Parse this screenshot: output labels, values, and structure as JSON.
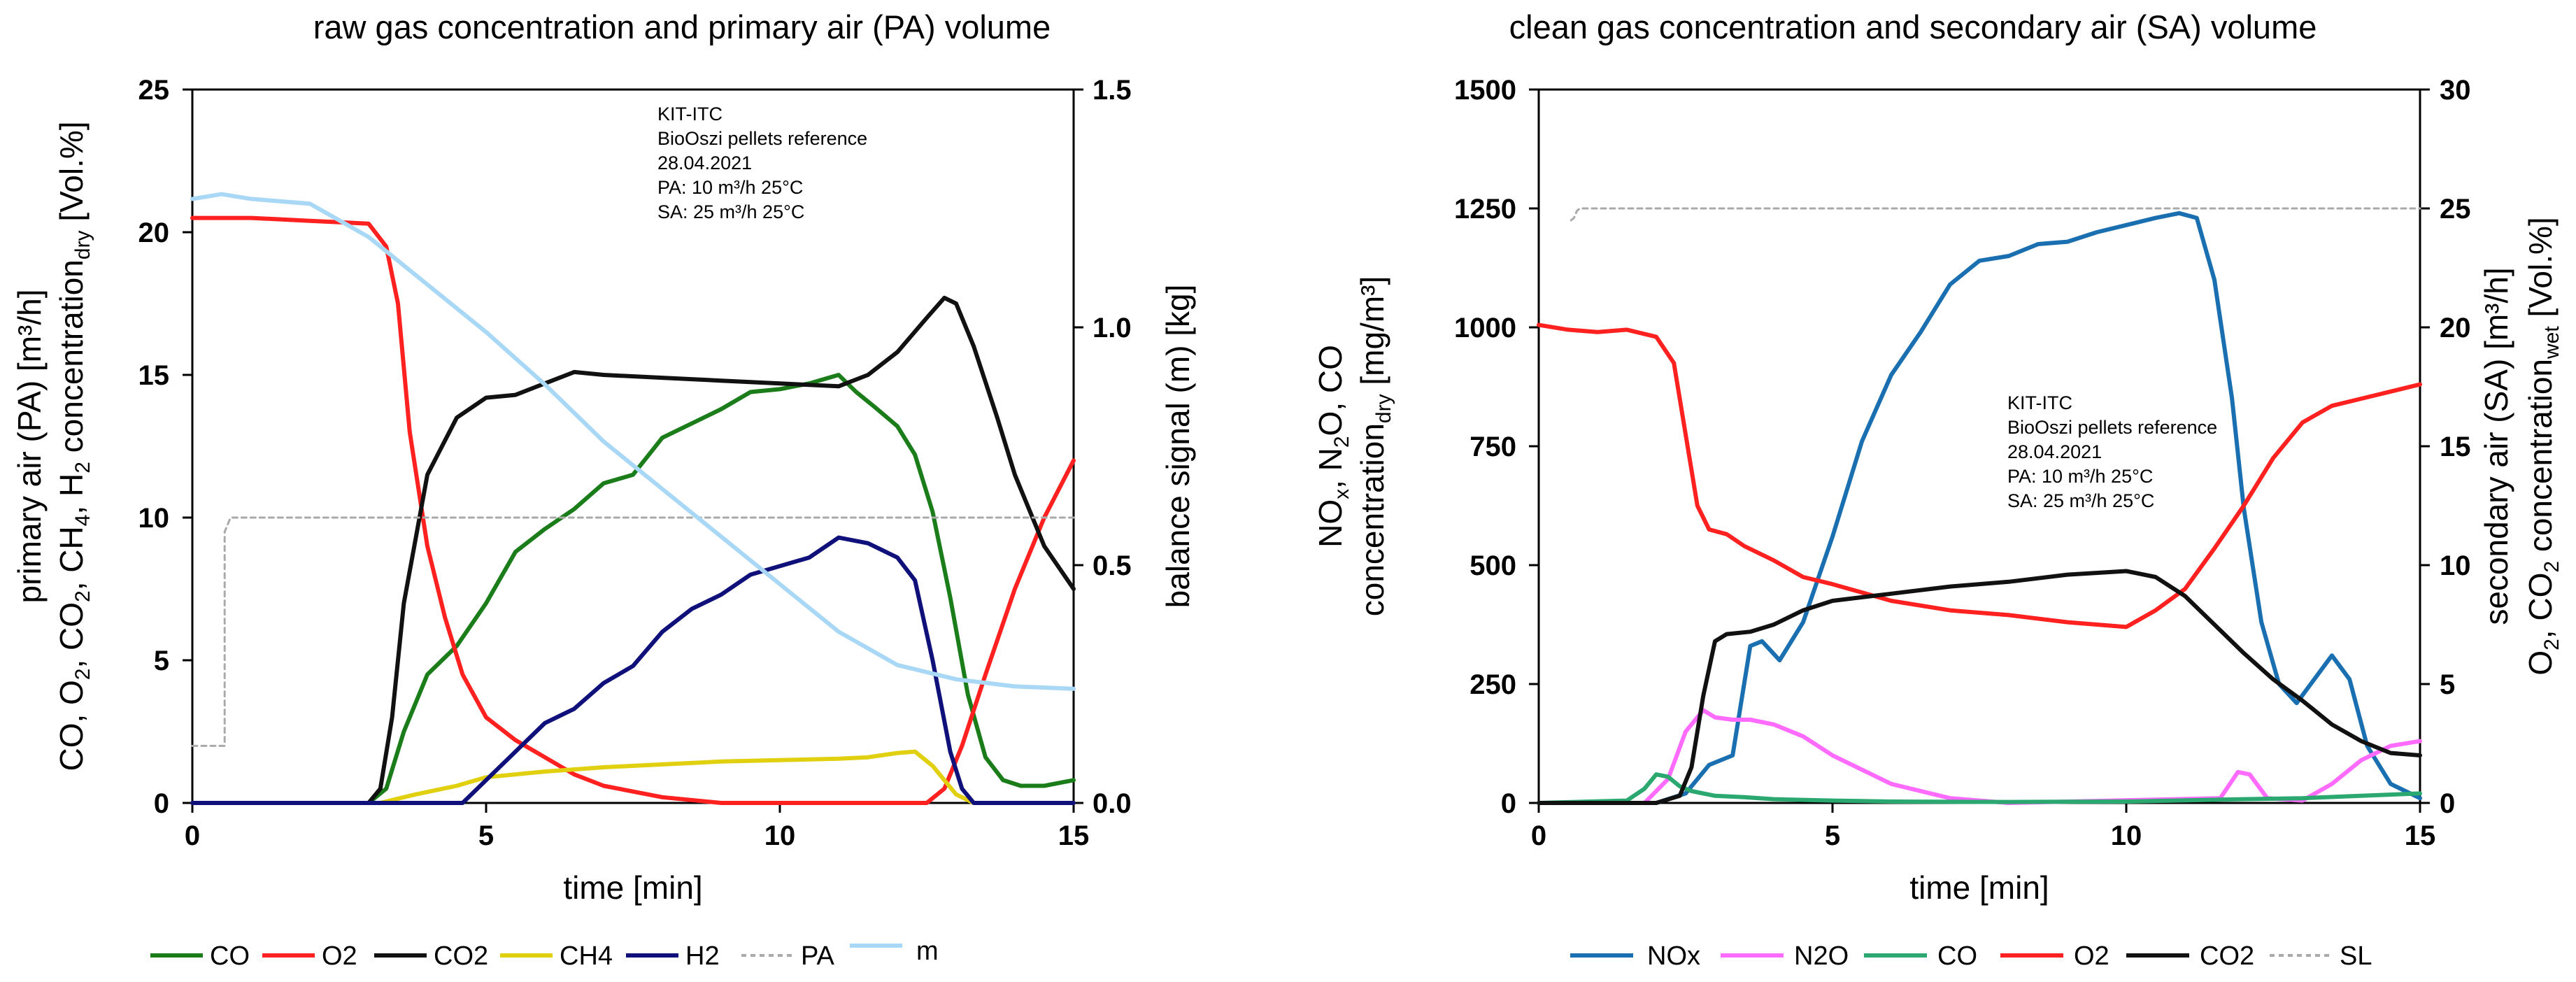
{
  "chart_data": [
    {
      "type": "line",
      "title": "raw gas concentration and primary air (PA) volume",
      "xlabel": "time [min]",
      "ylabel": {
        "text": "primary air (PA) [m³/h]",
        "line2": "CO, O",
        "sub1": "2",
        "t1": ", CO",
        "sub2": "2",
        "t2": ", CH",
        "sub3": "4",
        "t3": ", H",
        "sub4": "2",
        "t4": " concentration",
        "sub5": "dry",
        "t5": " [Vol.%]"
      },
      "ylabel_right": "balance signal (m) [kg]",
      "xlim": [
        0,
        15
      ],
      "ylim": [
        0,
        25
      ],
      "ylim_right": [
        0,
        1.5
      ],
      "xticks": [
        "0",
        "5",
        "10",
        "15"
      ],
      "yticks": [
        "0",
        "5",
        "10",
        "15",
        "20",
        "25"
      ],
      "yticks_right": [
        "0.0",
        "0.5",
        "1.0",
        "1.5"
      ],
      "annotation": [
        "KIT-ITC",
        "BioOszi pellets reference",
        "28.04.2021",
        "PA: 10 m³/h 25°C",
        "SA: 25 m³/h 25°C"
      ],
      "series": [
        {
          "name": "CO",
          "color": "#1a7d1a",
          "axis": "left",
          "dash": false,
          "x": [
            0,
            3.0,
            3.3,
            3.6,
            4.0,
            4.5,
            5.0,
            5.5,
            6.0,
            6.5,
            7.0,
            7.5,
            8.0,
            8.5,
            9.0,
            9.5,
            10.0,
            10.5,
            11.0,
            11.3,
            11.6,
            12.0,
            12.3,
            12.6,
            12.9,
            13.2,
            13.5,
            13.8,
            14.1,
            14.5,
            15.0
          ],
          "y": [
            0,
            0,
            0.5,
            2.5,
            4.5,
            5.5,
            7.0,
            8.8,
            9.6,
            10.3,
            11.2,
            11.5,
            12.8,
            13.3,
            13.8,
            14.4,
            14.5,
            14.7,
            15.0,
            14.4,
            13.9,
            13.2,
            12.2,
            10.2,
            7.2,
            3.8,
            1.6,
            0.8,
            0.6,
            0.6,
            0.8
          ]
        },
        {
          "name": "O2",
          "color": "#ff2020",
          "axis": "left",
          "dash": false,
          "x": [
            0,
            1.0,
            2.0,
            3.0,
            3.3,
            3.5,
            3.7,
            4.0,
            4.3,
            4.6,
            5.0,
            5.5,
            6.0,
            6.5,
            7.0,
            8.0,
            9.0,
            12.5,
            12.8,
            13.1,
            13.5,
            14.0,
            14.5,
            15.0
          ],
          "y": [
            20.5,
            20.5,
            20.4,
            20.3,
            19.5,
            17.5,
            13.0,
            9.0,
            6.5,
            4.5,
            3.0,
            2.2,
            1.6,
            1.0,
            0.6,
            0.2,
            0,
            0,
            0.5,
            2.0,
            4.5,
            7.5,
            10.0,
            12.0
          ]
        },
        {
          "name": "CO2",
          "color": "#111111",
          "axis": "left",
          "dash": false,
          "x": [
            0,
            3.0,
            3.2,
            3.4,
            3.6,
            4.0,
            4.5,
            5.0,
            5.5,
            6.0,
            6.5,
            7.0,
            8.0,
            9.0,
            10.0,
            11.0,
            11.5,
            12.0,
            12.5,
            12.8,
            13.0,
            13.3,
            13.7,
            14.0,
            14.5,
            15.0
          ],
          "y": [
            0,
            0,
            0.5,
            3.0,
            7.0,
            11.5,
            13.5,
            14.2,
            14.3,
            14.7,
            15.1,
            15.0,
            14.9,
            14.8,
            14.7,
            14.6,
            15.0,
            15.8,
            17.0,
            17.7,
            17.5,
            16.0,
            13.5,
            11.5,
            9.0,
            7.5
          ]
        },
        {
          "name": "CH4",
          "color": "#e0d010",
          "axis": "left",
          "dash": false,
          "x": [
            0,
            3.2,
            3.8,
            4.5,
            5.0,
            6.0,
            7.0,
            8.0,
            9.0,
            10.0,
            11.0,
            11.5,
            12.0,
            12.3,
            12.6,
            13.0,
            13.3,
            15.0
          ],
          "y": [
            0,
            0,
            0.3,
            0.6,
            0.9,
            1.1,
            1.25,
            1.35,
            1.45,
            1.5,
            1.55,
            1.6,
            1.75,
            1.8,
            1.3,
            0.3,
            0,
            0
          ]
        },
        {
          "name": "H2",
          "color": "#10107a",
          "axis": "left",
          "dash": false,
          "x": [
            0,
            4.6,
            5.0,
            5.5,
            6.0,
            6.5,
            7.0,
            7.5,
            8.0,
            8.5,
            9.0,
            9.5,
            10.0,
            10.5,
            11.0,
            11.5,
            12.0,
            12.3,
            12.6,
            12.9,
            13.1,
            13.3,
            15.0
          ],
          "y": [
            0,
            0,
            0.8,
            1.8,
            2.8,
            3.3,
            4.2,
            4.8,
            6.0,
            6.8,
            7.3,
            8.0,
            8.3,
            8.6,
            9.3,
            9.1,
            8.6,
            7.8,
            5.0,
            1.8,
            0.5,
            0,
            0
          ]
        },
        {
          "name": "PA",
          "color": "#aaaaaa",
          "axis": "left",
          "dash": true,
          "x": [
            0,
            0.55,
            0.55,
            0.65,
            15.0
          ],
          "y": [
            2.0,
            2.0,
            9.5,
            10.0,
            10.0
          ]
        },
        {
          "name": "m",
          "color": "#a8d8f5",
          "axis": "right",
          "dash": false,
          "x": [
            0,
            0.5,
            1.0,
            2.0,
            3.0,
            4.0,
            5.0,
            6.0,
            7.0,
            8.0,
            9.0,
            10.0,
            11.0,
            12.0,
            13.0,
            14.0,
            15.0
          ],
          "y": [
            1.27,
            1.28,
            1.27,
            1.26,
            1.19,
            1.09,
            0.99,
            0.88,
            0.76,
            0.66,
            0.56,
            0.46,
            0.36,
            0.29,
            0.26,
            0.245,
            0.24
          ]
        }
      ],
      "legend": [
        "CO",
        "O2",
        "CO2",
        "CH4",
        "H2",
        "PA",
        "m"
      ]
    },
    {
      "type": "line",
      "title": "clean gas concentration and secondary air (SA) volume",
      "xlabel": "time [min]",
      "ylabel": {
        "a": "NO",
        "sub1": "x",
        "b": ", N",
        "sub2": "2",
        "c": "O, CO",
        "line2": "concentration",
        "sub3": "dry",
        "d": " [mg/m³]"
      },
      "ylabel_right": {
        "text": "secondary air (SA) [m³/h]",
        "a": "O",
        "sub1": "2",
        "b": ", CO",
        "sub2": "2",
        "c": " concentration",
        "sub3": "wet",
        "d": " [Vol.%]"
      },
      "xlim": [
        0,
        15
      ],
      "ylim": [
        0,
        1500
      ],
      "ylim_right": [
        0,
        30
      ],
      "xticks": [
        "0",
        "5",
        "10",
        "15"
      ],
      "yticks": [
        "0",
        "250",
        "500",
        "750",
        "1000",
        "1250",
        "1500"
      ],
      "yticks_right": [
        "0",
        "5",
        "10",
        "15",
        "20",
        "25",
        "30"
      ],
      "annotation": [
        "KIT-ITC",
        "BioOszi pellets reference",
        "28.04.2021",
        "PA: 10 m³/h 25°C",
        "SA: 25 m³/h 25°C"
      ],
      "series": [
        {
          "name": "NOx",
          "color": "#1a6fb0",
          "axis": "left",
          "dash": false,
          "x": [
            0,
            2.0,
            2.5,
            2.9,
            3.3,
            3.6,
            3.8,
            4.1,
            4.5,
            5.0,
            5.5,
            6.0,
            6.5,
            7.0,
            7.5,
            8.0,
            8.5,
            9.0,
            9.5,
            10.0,
            10.5,
            10.9,
            11.2,
            11.5,
            11.8,
            12.0,
            12.3,
            12.6,
            12.9,
            13.2,
            13.5,
            13.8,
            14.1,
            14.5,
            15.0
          ],
          "y": [
            0,
            0,
            20,
            80,
            100,
            330,
            340,
            300,
            380,
            560,
            760,
            900,
            990,
            1090,
            1140,
            1150,
            1175,
            1180,
            1200,
            1215,
            1230,
            1240,
            1230,
            1100,
            850,
            620,
            380,
            250,
            210,
            260,
            310,
            260,
            120,
            40,
            10
          ]
        },
        {
          "name": "N2O",
          "color": "#ff6aff",
          "axis": "left",
          "dash": false,
          "x": [
            0,
            1.8,
            2.2,
            2.5,
            2.8,
            3.0,
            3.3,
            3.6,
            4.0,
            4.5,
            5.0,
            5.5,
            6.0,
            7.0,
            8.0,
            11.6,
            11.9,
            12.1,
            12.4,
            13.0,
            13.5,
            14.0,
            14.5,
            15.0
          ],
          "y": [
            0,
            0,
            50,
            150,
            195,
            180,
            175,
            175,
            165,
            140,
            100,
            70,
            40,
            10,
            0,
            10,
            65,
            60,
            10,
            5,
            40,
            90,
            120,
            130
          ]
        },
        {
          "name": "CO",
          "color": "#2aa870",
          "axis": "left",
          "dash": false,
          "x": [
            0,
            1.5,
            1.8,
            2.0,
            2.2,
            2.4,
            2.6,
            3.0,
            3.5,
            4.0,
            5.0,
            6.0,
            8.0,
            10.0,
            12.0,
            13.0,
            14.0,
            15.0
          ],
          "y": [
            0,
            5,
            30,
            60,
            55,
            35,
            25,
            15,
            12,
            8,
            5,
            3,
            2,
            3,
            8,
            10,
            15,
            20
          ]
        },
        {
          "name": "O2",
          "color": "#ff2020",
          "axis": "right",
          "dash": false,
          "x": [
            0,
            0.5,
            1.0,
            1.5,
            2.0,
            2.3,
            2.5,
            2.7,
            2.9,
            3.2,
            3.5,
            4.0,
            4.5,
            5.0,
            6.0,
            7.0,
            8.0,
            9.0,
            10.0,
            10.5,
            11.0,
            11.5,
            12.0,
            12.5,
            13.0,
            13.5,
            14.0,
            14.5,
            15.0
          ],
          "y": [
            20.1,
            19.9,
            19.8,
            19.9,
            19.6,
            18.5,
            15.5,
            12.5,
            11.5,
            11.3,
            10.8,
            10.2,
            9.5,
            9.2,
            8.5,
            8.1,
            7.9,
            7.6,
            7.4,
            8.1,
            9.0,
            10.7,
            12.5,
            14.5,
            16.0,
            16.7,
            17.0,
            17.3,
            17.6
          ]
        },
        {
          "name": "CO2",
          "color": "#111111",
          "axis": "right",
          "dash": false,
          "x": [
            0,
            2.0,
            2.4,
            2.6,
            2.8,
            3.0,
            3.2,
            3.6,
            4.0,
            4.5,
            5.0,
            6.0,
            7.0,
            8.0,
            9.0,
            10.0,
            10.5,
            11.0,
            11.5,
            12.0,
            12.5,
            13.0,
            13.5,
            14.0,
            14.5,
            15.0
          ],
          "y": [
            0,
            0,
            0.3,
            1.5,
            4.5,
            6.8,
            7.1,
            7.2,
            7.5,
            8.1,
            8.5,
            8.8,
            9.1,
            9.3,
            9.6,
            9.75,
            9.5,
            8.7,
            7.5,
            6.3,
            5.2,
            4.3,
            3.3,
            2.6,
            2.1,
            2.0
          ]
        },
        {
          "name": "SL",
          "color": "#aaaaaa",
          "axis": "right",
          "dash": true,
          "x": [
            0.55,
            0.6,
            0.65,
            0.7,
            15.0
          ],
          "y": [
            24.5,
            24.6,
            24.9,
            25.0,
            25.0
          ]
        }
      ],
      "legend": [
        "NOx",
        "N2O",
        "CO",
        "O2",
        "CO2",
        "SL"
      ]
    }
  ]
}
